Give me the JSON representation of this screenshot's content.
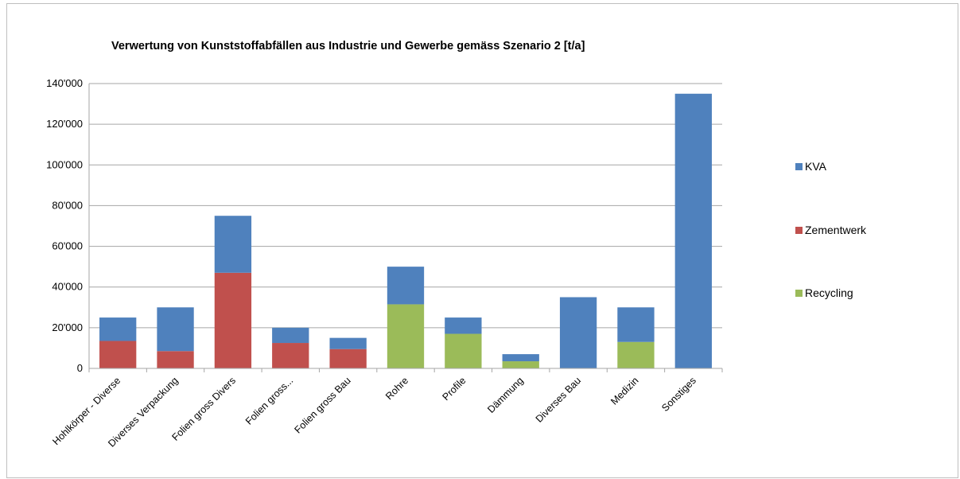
{
  "chart_data": {
    "type": "bar",
    "stacked": true,
    "title": "Verwertung von Kunststoffabfällen aus Industrie und Gewerbe gemäss Szenario 2 [t/a]",
    "categories": [
      "Hohlkörper - Diverse",
      "Diverses Verpackung",
      "Folien gross Divers",
      "Folien gross...",
      "Folien gross Bau",
      "Rohre",
      "Profile",
      "Dämmung",
      "Diverses Bau",
      "Medizin",
      "Sonstiges"
    ],
    "series": [
      {
        "name": "Recycling",
        "color": "#9bbb59",
        "values": [
          0,
          0,
          0,
          0,
          0,
          31500,
          17000,
          3500,
          0,
          13000,
          0
        ]
      },
      {
        "name": "Zementwerk",
        "color": "#c0504d",
        "values": [
          13500,
          8500,
          47000,
          12500,
          9500,
          0,
          0,
          0,
          0,
          0,
          0
        ]
      },
      {
        "name": "KVA",
        "color": "#4f81bd",
        "values": [
          11500,
          21500,
          28000,
          7500,
          5500,
          18500,
          8000,
          3500,
          35000,
          17000,
          135000
        ]
      }
    ],
    "legend_order": [
      "KVA",
      "Zementwerk",
      "Recycling"
    ],
    "ylim": [
      0,
      140000
    ],
    "yticks": [
      "0",
      "20'000",
      "40'000",
      "60'000",
      "80'000",
      "100'000",
      "120'000",
      "140'000"
    ],
    "grid": true,
    "legend_position": "right"
  }
}
